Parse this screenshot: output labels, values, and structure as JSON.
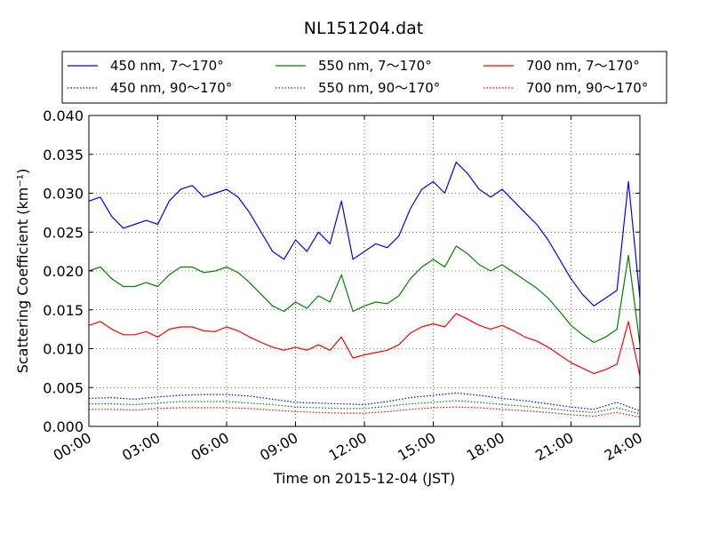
{
  "chart_data": {
    "type": "line",
    "title": "NL151204.dat",
    "xlabel": "Time on 2015-12-04 (JST)",
    "ylabel": "Scattering Coefficient (km⁻¹)",
    "x_unit": "hours",
    "xlim": [
      0,
      24
    ],
    "ylim": [
      0,
      0.04
    ],
    "x_ticks": [
      {
        "value": 0,
        "label": "00:00"
      },
      {
        "value": 3,
        "label": "03:00"
      },
      {
        "value": 6,
        "label": "06:00"
      },
      {
        "value": 9,
        "label": "09:00"
      },
      {
        "value": 12,
        "label": "12:00"
      },
      {
        "value": 15,
        "label": "15:00"
      },
      {
        "value": 18,
        "label": "18:00"
      },
      {
        "value": 21,
        "label": "21:00"
      },
      {
        "value": 24,
        "label": "24:00"
      }
    ],
    "y_ticks": [
      {
        "value": 0,
        "label": "0.000"
      },
      {
        "value": 0.005,
        "label": "0.005"
      },
      {
        "value": 0.01,
        "label": "0.010"
      },
      {
        "value": 0.015,
        "label": "0.015"
      },
      {
        "value": 0.02,
        "label": "0.020"
      },
      {
        "value": 0.025,
        "label": "0.025"
      },
      {
        "value": 0.03,
        "label": "0.030"
      },
      {
        "value": 0.035,
        "label": "0.035"
      },
      {
        "value": 0.04,
        "label": "0.040"
      }
    ],
    "grid": true,
    "legend_position": "top",
    "series": [
      {
        "name": "450 nm, 7～170°",
        "color": "#0000ff",
        "style": "solid",
        "x": [
          0,
          0.5,
          1,
          1.5,
          2,
          2.5,
          3,
          3.5,
          4,
          4.5,
          5,
          5.5,
          6,
          6.5,
          7,
          7.5,
          8,
          8.5,
          9,
          9.5,
          10,
          10.5,
          11,
          11.5,
          12,
          12.5,
          13,
          13.5,
          14,
          14.5,
          15,
          15.5,
          16,
          16.5,
          17,
          17.5,
          18,
          18.5,
          19,
          19.5,
          20,
          20.5,
          21,
          21.5,
          22,
          22.5,
          23,
          23.5,
          24
        ],
        "y": [
          0.029,
          0.0295,
          0.027,
          0.0255,
          0.026,
          0.0265,
          0.026,
          0.029,
          0.0305,
          0.031,
          0.0295,
          0.03,
          0.0305,
          0.0295,
          0.0275,
          0.025,
          0.0225,
          0.0215,
          0.024,
          0.0225,
          0.025,
          0.0235,
          0.029,
          0.0215,
          0.0225,
          0.0235,
          0.023,
          0.0245,
          0.028,
          0.0305,
          0.0315,
          0.03,
          0.034,
          0.0325,
          0.0305,
          0.0295,
          0.0305,
          0.029,
          0.0275,
          0.026,
          0.024,
          0.0215,
          0.019,
          0.017,
          0.0155,
          0.0165,
          0.0175,
          0.0315,
          0.0165
        ]
      },
      {
        "name": "450 nm, 90～170°",
        "color": "#0000ff",
        "style": "dotted",
        "x": [
          0,
          1,
          2,
          3,
          4,
          5,
          6,
          7,
          8,
          9,
          10,
          11,
          12,
          13,
          14,
          15,
          16,
          17,
          18,
          19,
          20,
          21,
          22,
          23,
          24
        ],
        "y": [
          0.0036,
          0.0037,
          0.0035,
          0.0038,
          0.004,
          0.0041,
          0.0041,
          0.0039,
          0.0035,
          0.0031,
          0.003,
          0.0029,
          0.0028,
          0.0032,
          0.0037,
          0.004,
          0.0043,
          0.004,
          0.0036,
          0.0033,
          0.0029,
          0.0025,
          0.0022,
          0.0031,
          0.002
        ]
      },
      {
        "name": "550 nm, 7～170°",
        "color": "#008000",
        "style": "solid",
        "x": [
          0,
          0.5,
          1,
          1.5,
          2,
          2.5,
          3,
          3.5,
          4,
          4.5,
          5,
          5.5,
          6,
          6.5,
          7,
          7.5,
          8,
          8.5,
          9,
          9.5,
          10,
          10.5,
          11,
          11.5,
          12,
          12.5,
          13,
          13.5,
          14,
          14.5,
          15,
          15.5,
          16,
          16.5,
          17,
          17.5,
          18,
          18.5,
          19,
          19.5,
          20,
          20.5,
          21,
          21.5,
          22,
          22.5,
          23,
          23.5,
          24
        ],
        "y": [
          0.02,
          0.0205,
          0.019,
          0.018,
          0.018,
          0.0185,
          0.018,
          0.0195,
          0.0205,
          0.0205,
          0.0198,
          0.02,
          0.0205,
          0.0198,
          0.0185,
          0.017,
          0.0155,
          0.0148,
          0.016,
          0.0152,
          0.0168,
          0.016,
          0.0195,
          0.0148,
          0.0155,
          0.016,
          0.0158,
          0.0168,
          0.019,
          0.0205,
          0.0215,
          0.0205,
          0.0232,
          0.0222,
          0.0208,
          0.02,
          0.0208,
          0.0198,
          0.0188,
          0.0178,
          0.0165,
          0.0148,
          0.013,
          0.0118,
          0.0108,
          0.0115,
          0.0125,
          0.022,
          0.0105
        ]
      },
      {
        "name": "550 nm, 90～170°",
        "color": "#008000",
        "style": "dotted",
        "x": [
          0,
          1,
          2,
          3,
          4,
          5,
          6,
          7,
          8,
          9,
          10,
          11,
          12,
          13,
          14,
          15,
          16,
          17,
          18,
          19,
          20,
          21,
          22,
          23,
          24
        ],
        "y": [
          0.0029,
          0.0029,
          0.0028,
          0.003,
          0.0032,
          0.0032,
          0.0032,
          0.003,
          0.0028,
          0.0025,
          0.0024,
          0.0023,
          0.0023,
          0.0026,
          0.0029,
          0.0031,
          0.0033,
          0.0031,
          0.0028,
          0.0026,
          0.0023,
          0.002,
          0.0018,
          0.0024,
          0.0016
        ]
      },
      {
        "name": "700 nm, 7～170°",
        "color": "#ff0000",
        "style": "solid",
        "x": [
          0,
          0.5,
          1,
          1.5,
          2,
          2.5,
          3,
          3.5,
          4,
          4.5,
          5,
          5.5,
          6,
          6.5,
          7,
          7.5,
          8,
          8.5,
          9,
          9.5,
          10,
          10.5,
          11,
          11.5,
          12,
          12.5,
          13,
          13.5,
          14,
          14.5,
          15,
          15.5,
          16,
          16.5,
          17,
          17.5,
          18,
          18.5,
          19,
          19.5,
          20,
          20.5,
          21,
          21.5,
          22,
          22.5,
          23,
          23.5,
          24
        ],
        "y": [
          0.013,
          0.0135,
          0.0125,
          0.0118,
          0.0118,
          0.0122,
          0.0115,
          0.0125,
          0.0128,
          0.0128,
          0.0123,
          0.0122,
          0.0128,
          0.0123,
          0.0115,
          0.0108,
          0.0102,
          0.0098,
          0.0102,
          0.0098,
          0.0105,
          0.0098,
          0.0115,
          0.0088,
          0.0092,
          0.0095,
          0.0098,
          0.0105,
          0.012,
          0.0128,
          0.0132,
          0.0128,
          0.0145,
          0.0138,
          0.013,
          0.0125,
          0.013,
          0.0123,
          0.0115,
          0.011,
          0.0102,
          0.0092,
          0.0082,
          0.0075,
          0.0068,
          0.0073,
          0.008,
          0.0135,
          0.0065
        ]
      },
      {
        "name": "700 nm, 90～170°",
        "color": "#ff0000",
        "style": "dotted",
        "x": [
          0,
          1,
          2,
          3,
          4,
          5,
          6,
          7,
          8,
          9,
          10,
          11,
          12,
          13,
          14,
          15,
          16,
          17,
          18,
          19,
          20,
          21,
          22,
          23,
          24
        ],
        "y": [
          0.0022,
          0.0022,
          0.0021,
          0.0023,
          0.0024,
          0.0024,
          0.0024,
          0.0023,
          0.0021,
          0.0019,
          0.0018,
          0.0017,
          0.0017,
          0.0019,
          0.0022,
          0.0024,
          0.0025,
          0.0024,
          0.0022,
          0.002,
          0.0018,
          0.0015,
          0.0013,
          0.0018,
          0.0012
        ]
      }
    ]
  }
}
